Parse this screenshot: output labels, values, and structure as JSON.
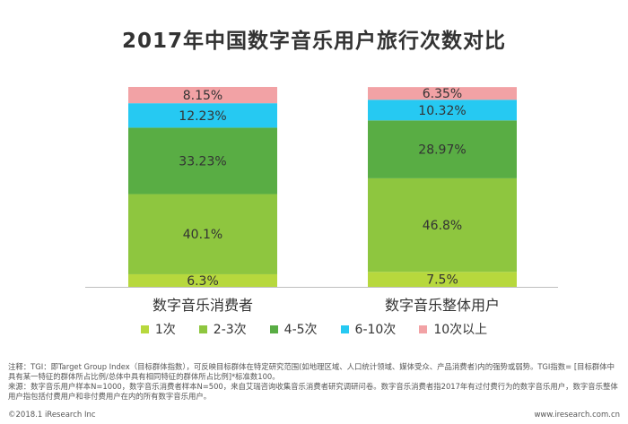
{
  "title": "2017年中国数字音乐用户旅行次数对比",
  "chart_data": {
    "type": "bar",
    "stacked": true,
    "title": "2017年中国数字音乐用户旅行次数对比",
    "categories": [
      "数字音乐消费者",
      "数字音乐整体用户"
    ],
    "ylim": [
      0,
      100
    ],
    "grid": false,
    "legend_position": "bottom",
    "series": [
      {
        "name": "1次",
        "color": "#b7d83d",
        "values": [
          6.3,
          7.5
        ],
        "labels": [
          "6.3%",
          "7.5%"
        ]
      },
      {
        "name": "2-3次",
        "color": "#8ec63f",
        "values": [
          40.1,
          46.8
        ],
        "labels": [
          "40.1%",
          "46.8%"
        ]
      },
      {
        "name": "4-5次",
        "color": "#59ad44",
        "values": [
          33.23,
          28.97
        ],
        "labels": [
          "33.23%",
          "28.97%"
        ]
      },
      {
        "name": "6-10次",
        "color": "#26c9f2",
        "values": [
          12.23,
          10.32
        ],
        "labels": [
          "12.23%",
          "10.32%"
        ]
      },
      {
        "name": "10次以上",
        "color": "#f2a2a5",
        "values": [
          8.15,
          6.35
        ],
        "labels": [
          "8.15%",
          "6.35%"
        ]
      }
    ]
  },
  "notes": [
    "注释：TGI：即Target Group Index（目标群体指数），可反映目标群体在特定研究范围(如地理区域、人口统计领域、媒体受众、产品消费者)内的强势或弱势。TGI指数= [目标群体中具有某一特征的群体所占比例/总体中具有相同特征的群体所占比例]*标准数100。",
    "来源：数字音乐用户样本N=1000，数字音乐消费者样本N=500，来自艾瑞咨询收集音乐消费者研究调研问卷。数字音乐消费者指2017年有过付费行为的数字音乐用户，数字音乐整体用户指包括付费用户和非付费用户在内的所有数字音乐用户。"
  ],
  "footer": {
    "left": "©2018.1 iResearch Inc",
    "right": "www.iresearch.com.cn"
  }
}
